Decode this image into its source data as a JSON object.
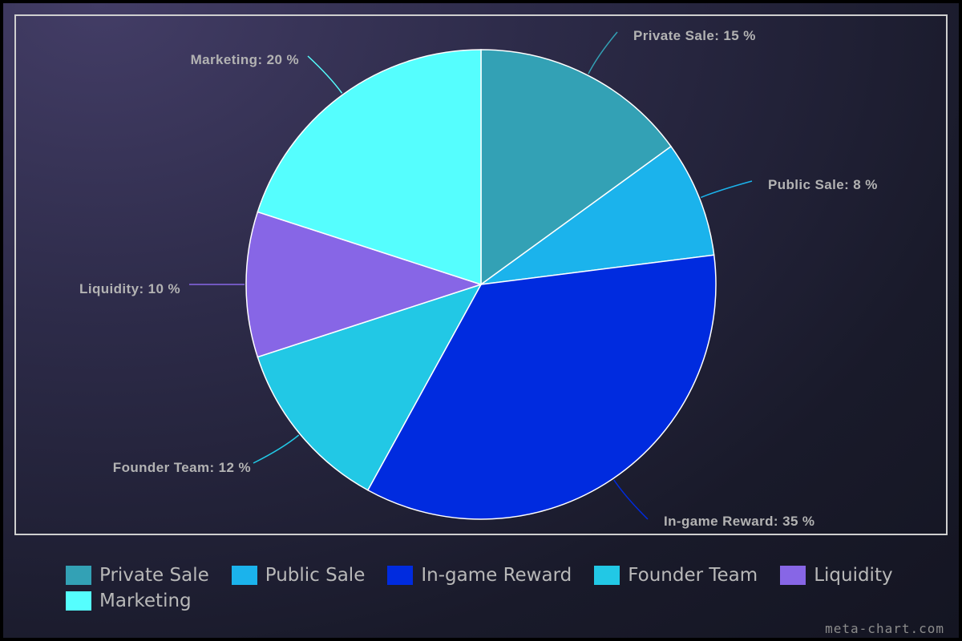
{
  "chart_data": {
    "type": "pie",
    "title": "",
    "slices": [
      {
        "label": "Private Sale",
        "value": 15,
        "label_text": "Private Sale: 15 %",
        "color": "#33a1b5"
      },
      {
        "label": "Public Sale",
        "value": 8,
        "label_text": "Public Sale: 8 %",
        "color": "#1bb3ec"
      },
      {
        "label": "In-game Reward",
        "value": 35,
        "label_text": "In-game Reward: 35 %",
        "color": "#002bdf"
      },
      {
        "label": "Founder Team",
        "value": 12,
        "label_text": "Founder Team: 12 %",
        "color": "#22c8e5"
      },
      {
        "label": "Liquidity",
        "value": 10,
        "label_text": "Liquidity: 10 %",
        "color": "#8766e6"
      },
      {
        "label": "Marketing",
        "value": 20,
        "label_text": "Marketing: 20 %",
        "color": "#55fefe"
      }
    ],
    "legend_position": "bottom"
  },
  "watermark": "meta-chart.com"
}
